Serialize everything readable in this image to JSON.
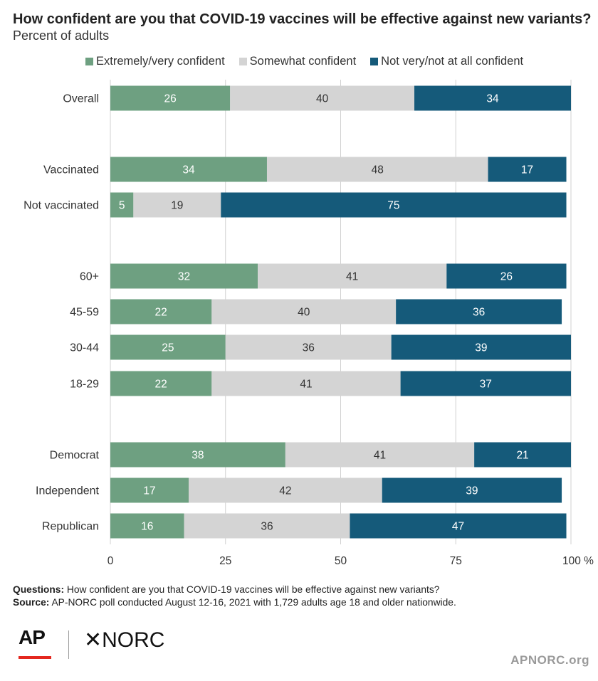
{
  "header": {
    "title": "How confident are you that COVID-19 vaccines will be effective against new variants?",
    "subtitle": "Percent of adults"
  },
  "colors": {
    "extremely": "#6ea081",
    "somewhat": "#d4d4d4",
    "notvery": "#155a7a",
    "grid": "#d0d0d0"
  },
  "chart_data": {
    "type": "bar",
    "orientation": "horizontal-stacked",
    "categories": [
      "Overall",
      "Vaccinated",
      "Not vaccinated",
      "60+",
      "45-59",
      "30-44",
      "18-29",
      "Democrat",
      "Independent",
      "Republican"
    ],
    "series": [
      {
        "name": "Extremely/very confident",
        "values": [
          26,
          34,
          5,
          32,
          22,
          25,
          22,
          38,
          17,
          16
        ]
      },
      {
        "name": "Somewhat confident",
        "values": [
          40,
          48,
          19,
          41,
          40,
          36,
          41,
          41,
          42,
          36
        ]
      },
      {
        "name": "Not very/not at all confident",
        "values": [
          34,
          17,
          75,
          26,
          36,
          39,
          37,
          21,
          39,
          47
        ]
      }
    ],
    "x_ticks": [
      "0",
      "25",
      "50",
      "75",
      "100 %"
    ],
    "xlim": [
      0,
      100
    ],
    "grid": true,
    "legend": "top"
  },
  "notes": {
    "questions_label": "Questions:",
    "questions_text": " How confident are you that COVID-19 vaccines will be effective against new variants?",
    "source_label": "Source:",
    "source_text": " AP-NORC poll conducted August 12-16, 2021 with 1,729 adults age 18 and older nationwide."
  },
  "footer": {
    "ap_logo": "AP",
    "norc_logo": "✕NORC",
    "site": "APNORC.org"
  }
}
